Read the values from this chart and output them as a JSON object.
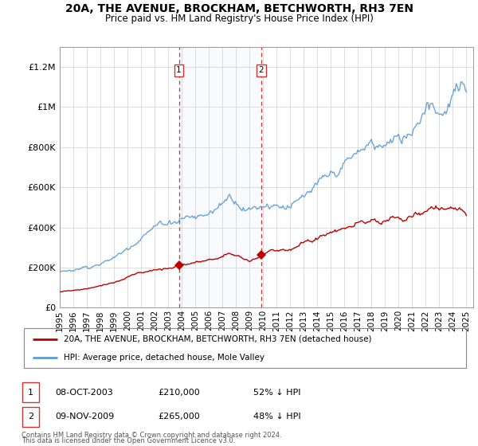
{
  "title": "20A, THE AVENUE, BROCKHAM, BETCHWORTH, RH3 7EN",
  "subtitle": "Price paid vs. HM Land Registry's House Price Index (HPI)",
  "hpi_color": "#5b9bd5",
  "price_color": "#c00000",
  "sale1_date": 2003.79,
  "sale1_price": 210000,
  "sale2_date": 2009.87,
  "sale2_price": 265000,
  "xmin": 1995,
  "xmax": 2025.5,
  "ymin": 0,
  "ymax": 1300000,
  "footer_line1": "Contains HM Land Registry data © Crown copyright and database right 2024.",
  "footer_line2": "This data is licensed under the Open Government Licence v3.0.",
  "legend_property": "20A, THE AVENUE, BROCKHAM, BETCHWORTH, RH3 7EN (detached house)",
  "legend_hpi": "HPI: Average price, detached house, Mole Valley"
}
